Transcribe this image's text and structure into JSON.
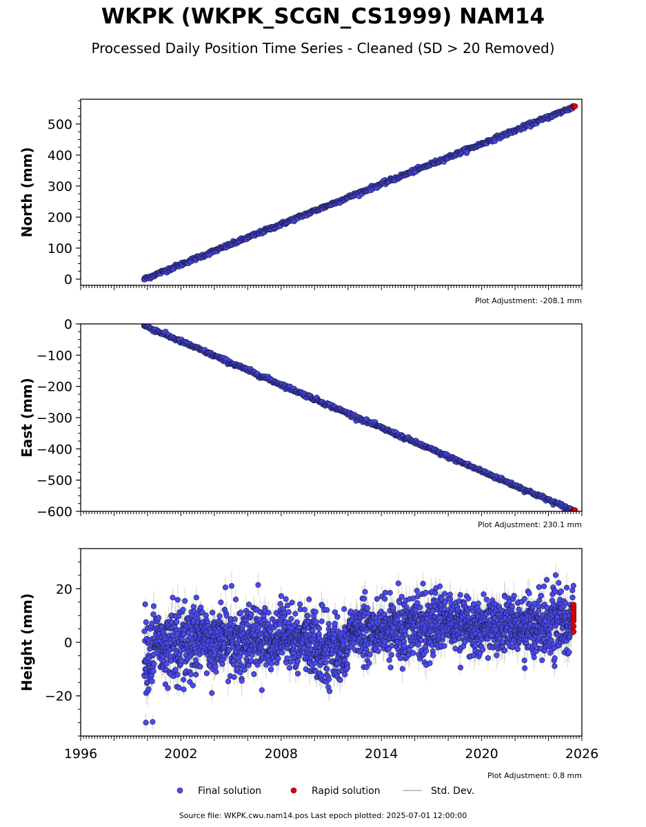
{
  "title": "WKPK (WKPK_SCGN_CS1999) NAM14",
  "subtitle": "Processed Daily Position Time Series - Cleaned (SD > 20 Removed)",
  "source_text": "Source file: WKPK.cwu.nam14.pos  Last epoch plotted: 2025-07-01 12:00:00",
  "colors": {
    "final": "#4a4af0",
    "rapid": "#e00000",
    "stddev": "#b0b0b0",
    "edge": "#1a1a3a"
  },
  "chart_data": [
    {
      "type": "scatter",
      "ylabel": "North (mm)",
      "adjustment": "Plot Adjustment: -208.1 mm",
      "xlim": [
        1996,
        2026
      ],
      "ylim": [
        -20,
        580
      ],
      "yticks": [
        0,
        100,
        200,
        300,
        400,
        500
      ],
      "final_trend": {
        "x_start": 1999.8,
        "x_end": 2025.5,
        "y_start": 0,
        "y_end": 555
      },
      "rapid": {
        "x": 2025.5,
        "y": 556
      },
      "scatter_mm": 3
    },
    {
      "type": "scatter",
      "ylabel": "East (mm)",
      "adjustment": "Plot Adjustment: 230.1 mm",
      "xlim": [
        1996,
        2026
      ],
      "ylim": [
        -600,
        0
      ],
      "yticks": [
        0,
        -100,
        -200,
        -300,
        -400,
        -500,
        -600
      ],
      "ytick_labels": [
        "0",
        "−100",
        "−200",
        "−300",
        "−400",
        "−500",
        "−600"
      ],
      "final_trend": {
        "x_start": 1999.8,
        "x_end": 2025.5,
        "y_start": -5,
        "y_end": -598
      },
      "rapid": {
        "x": 2025.5,
        "y": -598
      },
      "scatter_mm": 3
    },
    {
      "type": "scatter",
      "ylabel": "Height (mm)",
      "adjustment": "Plot Adjustment: 0.8 mm",
      "xlim": [
        1996,
        2026
      ],
      "ylim": [
        -35,
        35
      ],
      "yticks": [
        20,
        0,
        -20
      ],
      "ytick_labels": [
        "20",
        "0",
        "−20"
      ],
      "xticks": [
        1996,
        2002,
        2008,
        2014,
        2020,
        2026
      ],
      "xtick_labels": [
        "1996",
        "2002",
        "2008",
        "2014",
        "2020",
        "2026"
      ],
      "height_segments": [
        {
          "x0": 1999.8,
          "x1": 2000.5,
          "mean": -5,
          "sd": 9
        },
        {
          "x0": 2000.5,
          "x1": 2003.0,
          "mean": 0,
          "sd": 7
        },
        {
          "x0": 2003.0,
          "x1": 2010.0,
          "mean": 1,
          "sd": 6
        },
        {
          "x0": 2010.0,
          "x1": 2012.0,
          "mean": -3,
          "sd": 6
        },
        {
          "x0": 2012.0,
          "x1": 2015.0,
          "mean": 4,
          "sd": 5
        },
        {
          "x0": 2015.0,
          "x1": 2018.0,
          "mean": 7,
          "sd": 6
        },
        {
          "x0": 2018.0,
          "x1": 2022.5,
          "mean": 6,
          "sd": 5
        },
        {
          "x0": 2022.5,
          "x1": 2025.5,
          "mean": 7,
          "sd": 6
        }
      ],
      "rapid": {
        "x": 2025.5,
        "y_values": [
          4,
          6,
          8,
          9,
          10,
          11,
          12,
          13,
          14
        ]
      }
    }
  ],
  "legend": {
    "final": "Final solution",
    "rapid": "Rapid solution",
    "stddev": "Std. Dev."
  }
}
